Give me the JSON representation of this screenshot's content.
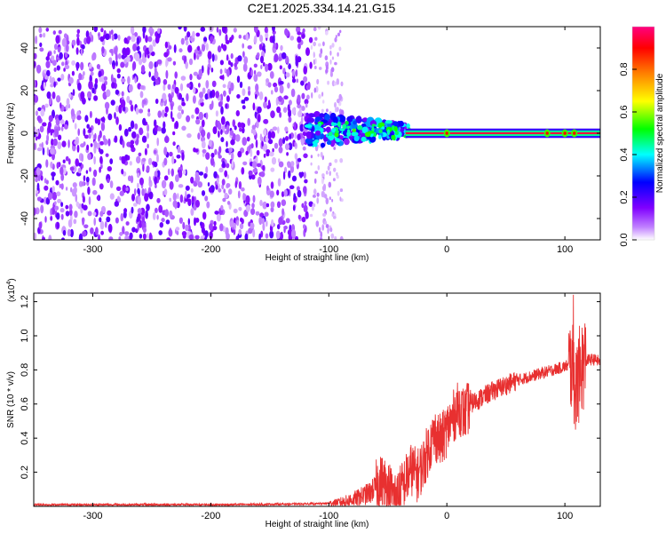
{
  "title": "C2E1.2025.334.14.21.G15",
  "chart_data": [
    {
      "type": "heatmap",
      "xlabel": "Height of straight line (km)",
      "ylabel": "Frequency (Hz)",
      "xlim": [
        -350,
        130
      ],
      "ylim": [
        -50,
        50
      ],
      "xticks": [
        -300,
        -200,
        -100,
        0,
        100
      ],
      "yticks": [
        -40,
        -20,
        0,
        20,
        40
      ],
      "xtick_labels": [
        "-300",
        "-200",
        "-100",
        "0",
        "100"
      ],
      "ytick_labels": [
        "-40",
        "-20",
        "0",
        "20",
        "40"
      ],
      "colorbar": {
        "label": "Normalized spectral amplitude",
        "range": [
          0.0,
          1.0
        ],
        "ticks": [
          0.0,
          0.2,
          0.4,
          0.6,
          0.8
        ],
        "tick_labels": [
          "0.0",
          "0.2",
          "0.4",
          "0.6",
          "0.8"
        ],
        "colormap": [
          "#ffffff",
          "#8000ff",
          "#0000ff",
          "#00ffff",
          "#00ff00",
          "#ffff00",
          "#ff8000",
          "#ff0000",
          "#ff0080"
        ]
      },
      "regions": [
        {
          "name": "scattered noise",
          "x_range": [
            -350,
            -115
          ],
          "freq_range": [
            -50,
            50
          ],
          "amplitude": 0.15
        },
        {
          "name": "diffuse noise fringe",
          "x_range": [
            -115,
            -88
          ],
          "freq_range": [
            -50,
            50
          ],
          "amplitude": 0.05
        },
        {
          "name": "transition cluster",
          "x_range": [
            -118,
            -35
          ],
          "freq_range": [
            -10,
            10
          ],
          "amplitude": 0.45
        },
        {
          "name": "carrier line",
          "x_range": [
            -35,
            130
          ],
          "freq_range": [
            -1,
            1
          ],
          "amplitude": 0.95
        }
      ]
    },
    {
      "type": "line",
      "xlabel": "Height of straight line (km)",
      "ylabel": "SNR (10 * v/v)",
      "multiplier": "(x10",
      "multiplier_exp": "4",
      "multiplier_close": ")",
      "xlim": [
        -350,
        130
      ],
      "ylim": [
        0,
        1.25
      ],
      "xticks": [
        -300,
        -200,
        -100,
        0,
        100
      ],
      "yticks": [
        0.2,
        0.4,
        0.6,
        0.8,
        1.0,
        1.2
      ],
      "xtick_labels": [
        "-300",
        "-200",
        "-100",
        "0",
        "100"
      ],
      "ytick_labels": [
        "0.2",
        "0.4",
        "0.6",
        "0.8",
        "1.0",
        "1.2"
      ],
      "color": "#e83030",
      "series": [
        {
          "name": "SNR",
          "x": [
            -350,
            -300,
            -250,
            -200,
            -150,
            -110,
            -95,
            -85,
            -75,
            -65,
            -55,
            -50,
            -45,
            -40,
            -35,
            -30,
            -25,
            -20,
            -15,
            -10,
            -5,
            0,
            5,
            10,
            15,
            20,
            30,
            40,
            50,
            60,
            70,
            80,
            90,
            100,
            105,
            108,
            110,
            113,
            116,
            120,
            125,
            130
          ],
          "y": [
            0.01,
            0.01,
            0.01,
            0.01,
            0.012,
            0.015,
            0.02,
            0.03,
            0.05,
            0.08,
            0.15,
            0.12,
            0.06,
            0.08,
            0.15,
            0.22,
            0.18,
            0.25,
            0.35,
            0.42,
            0.38,
            0.45,
            0.52,
            0.58,
            0.54,
            0.6,
            0.64,
            0.68,
            0.71,
            0.74,
            0.76,
            0.78,
            0.8,
            0.82,
            0.83,
            0.75,
            0.7,
            0.8,
            0.84,
            0.86,
            0.86,
            0.85
          ]
        }
      ]
    }
  ]
}
